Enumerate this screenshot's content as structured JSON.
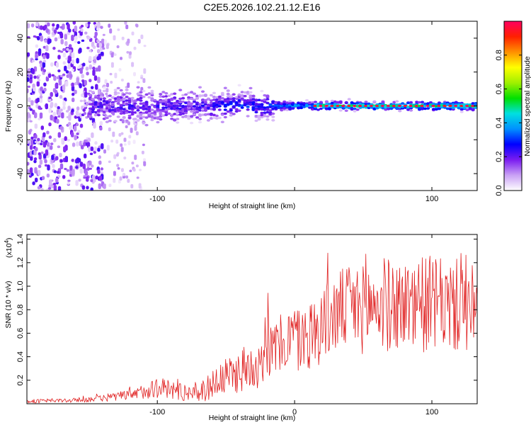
{
  "figure_title": "C2E5.2026.102.21.12.E16",
  "chart_data": [
    {
      "type": "heatmap",
      "title": "C2E5.2026.102.21.12.E16",
      "xlabel": "Height of straight line (km)",
      "ylabel": "Frequency (Hz)",
      "xlim": [
        -195,
        133
      ],
      "ylim": [
        -50,
        50
      ],
      "xticks": [
        -100,
        0,
        100
      ],
      "xtick_labels": [
        "-100",
        "",
        "100"
      ],
      "yticks": [
        -40,
        -20,
        0,
        20,
        40
      ],
      "ytick_labels": [
        "-40",
        "-20",
        "0",
        "20",
        "40"
      ],
      "colorbar": {
        "label": "Normalized spectral amplitude",
        "range": [
          0,
          1
        ],
        "ticks": [
          0.0,
          0.2,
          0.4,
          0.6,
          0.8
        ],
        "tick_labels": [
          "0.0",
          "0.2",
          "0.4",
          "0.6",
          "0.8"
        ],
        "colormap": [
          "#ffffff",
          "#c9a0f5",
          "#7a1cf0",
          "#0000ff",
          "#0090ff",
          "#00e0e0",
          "#00e000",
          "#a0f000",
          "#ffff00",
          "#ff9000",
          "#ff2000",
          "#ff0060"
        ]
      },
      "band": {
        "center_frequency_hz": 0,
        "description": "narrowband signal near 0 Hz, broadband noise below -110 km"
      }
    },
    {
      "type": "line",
      "title": "",
      "xlabel": "Height of straight line (km)",
      "ylabel": "SNR (10 * v/v)",
      "ymultiplier": "(x10",
      "ymultiplier_exp": "4",
      "ymultiplier_close": ")",
      "xlim": [
        -195,
        133
      ],
      "ylim": [
        0,
        14400
      ],
      "xticks": [
        -100,
        0,
        100
      ],
      "xtick_labels": [
        "-100",
        "0",
        "100"
      ],
      "yticks": [
        2000,
        4000,
        6000,
        8000,
        10000,
        12000,
        14000
      ],
      "ytick_labels": [
        "0.2",
        "0.4",
        "0.6",
        "0.8",
        "1.0",
        "1.2",
        "1.4"
      ],
      "color": "#e02020",
      "series": [
        {
          "name": "SNR",
          "x": [
            -195,
            -180,
            -160,
            -140,
            -130,
            -115,
            -108,
            -100,
            -90,
            -80,
            -75,
            -65,
            -55,
            -50,
            -45,
            -40,
            -35,
            -30,
            -25,
            -22,
            -20,
            -18,
            -15,
            -10,
            -5,
            0,
            5,
            10,
            15,
            20,
            25,
            30,
            35,
            40,
            45,
            50,
            55,
            60,
            65,
            70,
            75,
            80,
            85,
            90,
            95,
            100,
            105,
            110,
            115,
            120,
            125,
            130,
            133
          ],
          "y": [
            200,
            250,
            300,
            450,
            600,
            800,
            1200,
            1400,
            1200,
            1000,
            900,
            1200,
            2000,
            2200,
            2500,
            2800,
            3000,
            3300,
            3500,
            5000,
            6000,
            4200,
            4600,
            5000,
            5600,
            5400,
            5500,
            5800,
            6100,
            6900,
            7200,
            7600,
            8000,
            8100,
            8200,
            8000,
            8400,
            8300,
            8600,
            8200,
            8500,
            8300,
            8700,
            8600,
            8400,
            8600,
            8300,
            8500,
            8200,
            8400,
            8000,
            7900,
            8000
          ],
          "spread": [
            150,
            180,
            200,
            280,
            380,
            550,
            750,
            950,
            900,
            800,
            800,
            1000,
            1400,
            1600,
            1700,
            1900,
            2000,
            2100,
            2200,
            3000,
            3400,
            2400,
            2500,
            2600,
            2700,
            2800,
            2900,
            3000,
            3100,
            3300,
            3400,
            3500,
            3600,
            3700,
            3800,
            3800,
            3900,
            3900,
            4000,
            4000,
            4000,
            4000,
            4100,
            4100,
            4100,
            4100,
            4000,
            4000,
            4000,
            4000,
            3900,
            3900,
            3800
          ],
          "n_samples": 640
        }
      ]
    }
  ]
}
